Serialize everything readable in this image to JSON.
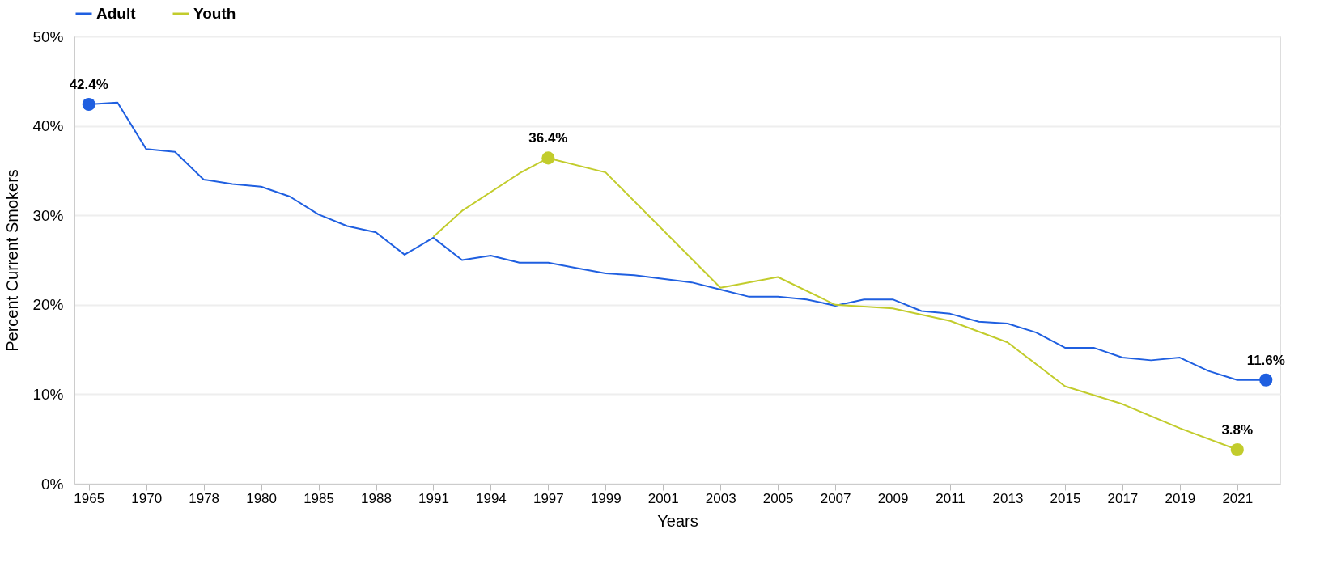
{
  "chart_data": {
    "type": "line",
    "xlabel": "Years",
    "ylabel": "Percent Current Smokers",
    "categories": [
      "1965",
      null,
      "1970",
      null,
      "1978",
      null,
      "1980",
      null,
      "1985",
      null,
      "1988",
      null,
      "1991",
      null,
      "1994",
      null,
      "1997",
      null,
      "1999",
      null,
      "2001",
      null,
      "2003",
      null,
      "2005",
      null,
      "2007",
      null,
      "2009",
      null,
      "2011",
      null,
      "2013",
      null,
      "2015",
      null,
      "2017",
      null,
      "2019",
      null,
      "2021",
      null
    ],
    "series": [
      {
        "name": "Adult",
        "color": "#1f5fe0",
        "values": [
          42.4,
          42.6,
          37.4,
          37.1,
          34.0,
          33.5,
          33.2,
          32.1,
          30.1,
          28.8,
          28.1,
          25.6,
          27.5,
          25.0,
          25.5,
          24.7,
          24.7,
          24.1,
          23.5,
          23.3,
          22.9,
          22.5,
          21.7,
          20.9,
          20.9,
          20.6,
          19.9,
          20.6,
          20.6,
          19.3,
          19.0,
          18.1,
          17.9,
          16.9,
          15.2,
          15.2,
          14.1,
          13.8,
          14.1,
          12.6,
          11.6,
          11.6
        ],
        "value_labels": [
          "42.4%",
          null,
          null,
          null,
          null,
          null,
          null,
          null,
          null,
          null,
          null,
          null,
          null,
          null,
          null,
          null,
          null,
          null,
          null,
          null,
          null,
          null,
          null,
          null,
          null,
          null,
          null,
          null,
          null,
          null,
          null,
          null,
          null,
          null,
          null,
          null,
          null,
          null,
          null,
          null,
          null,
          "11.6%"
        ]
      },
      {
        "name": "Youth",
        "color": "#c2cc2c",
        "values": [
          null,
          null,
          null,
          null,
          null,
          null,
          null,
          null,
          null,
          null,
          null,
          null,
          27.6,
          30.5,
          null,
          34.7,
          36.4,
          null,
          34.8,
          null,
          null,
          null,
          21.9,
          null,
          23.1,
          null,
          20.0,
          null,
          19.6,
          null,
          18.2,
          null,
          15.8,
          null,
          10.9,
          null,
          8.9,
          null,
          6.2,
          null,
          3.8,
          null
        ],
        "value_labels": [
          null,
          null,
          null,
          null,
          null,
          null,
          null,
          null,
          null,
          null,
          null,
          null,
          null,
          null,
          null,
          null,
          "36.4%",
          null,
          null,
          null,
          null,
          null,
          null,
          null,
          null,
          null,
          null,
          null,
          null,
          null,
          null,
          null,
          null,
          null,
          null,
          null,
          null,
          null,
          null,
          null,
          "3.8%",
          null
        ]
      }
    ],
    "ylim": [
      0,
      50
    ],
    "yticks": [
      {
        "value": 0,
        "label": "0%"
      },
      {
        "value": 10,
        "label": "10%"
      },
      {
        "value": 20,
        "label": "20%"
      },
      {
        "value": 30,
        "label": "30%"
      },
      {
        "value": 40,
        "label": "40%"
      },
      {
        "value": 50,
        "label": "50%"
      }
    ],
    "grid": "y",
    "legend": "top",
    "line_style": "solid"
  }
}
